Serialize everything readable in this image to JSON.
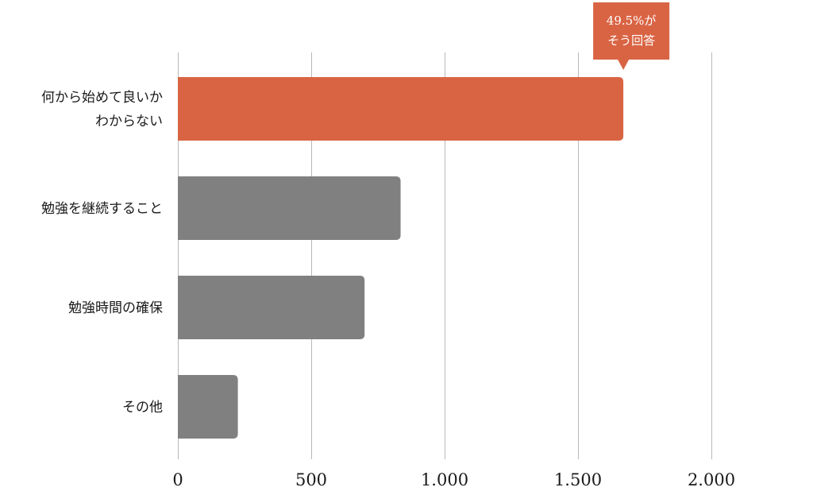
{
  "chart_data": {
    "type": "bar",
    "orientation": "horizontal",
    "categories": [
      [
        "何から始めて良いか",
        "わからない"
      ],
      [
        "勉強を継続すること"
      ],
      [
        "勉強時間の確保"
      ],
      [
        "その他"
      ]
    ],
    "values": [
      1670,
      835,
      700,
      225
    ],
    "xlim": [
      0,
      2000
    ],
    "ticks": [
      0,
      500,
      1000,
      1500,
      2000
    ],
    "tick_labels": [
      "0",
      "500",
      "1.000",
      "1.500",
      "2.000"
    ],
    "grid": true,
    "highlight_index": 0,
    "colors": {
      "highlight": "#d96444",
      "default": "#808080",
      "grid": "#b8b8b8"
    },
    "annotation": {
      "target_index": 0,
      "lines": [
        "49.5%が",
        "そう回答"
      ]
    }
  }
}
